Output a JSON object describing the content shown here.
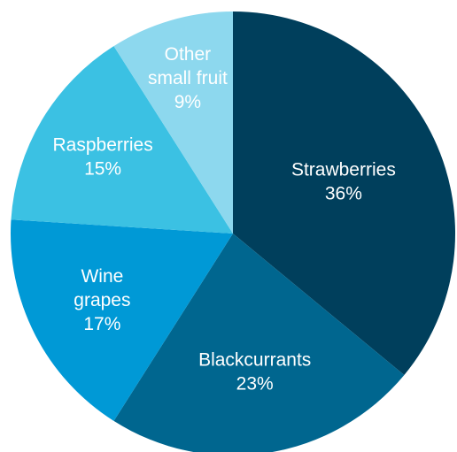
{
  "chart_data": {
    "type": "pie",
    "title": "",
    "unit": "%",
    "start_angle_deg": 0,
    "direction": "clockwise",
    "slices": [
      {
        "label": [
          "Strawberries"
        ],
        "value": 36,
        "value_label": "36%",
        "color": "#003f5c",
        "text_color": "#ffffff"
      },
      {
        "label": [
          "Blackcurrants"
        ],
        "value": 23,
        "value_label": "23%",
        "color": "#00668f",
        "text_color": "#ffffff"
      },
      {
        "label": [
          "Wine",
          "grapes"
        ],
        "value": 17,
        "value_label": "17%",
        "color": "#0099d6",
        "text_color": "#ffffff"
      },
      {
        "label": [
          "Raspberries"
        ],
        "value": 15,
        "value_label": "15%",
        "color": "#3bc1e3",
        "text_color": "#ffffff"
      },
      {
        "label": [
          "Other",
          "small fruit"
        ],
        "value": 9,
        "value_label": "9%",
        "color": "#8dd8ee",
        "text_color": "#ffffff"
      }
    ]
  }
}
